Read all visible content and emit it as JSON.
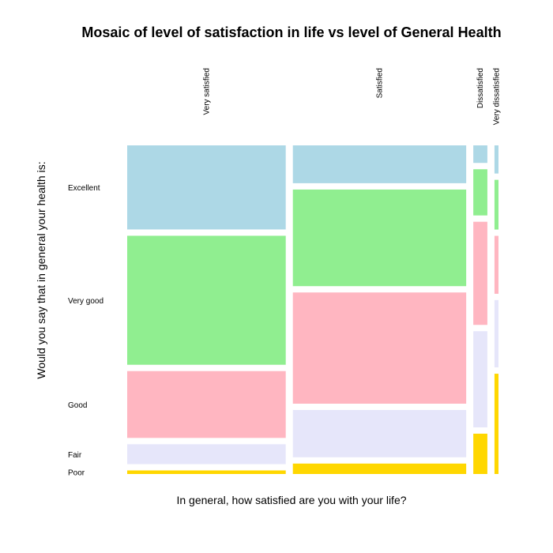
{
  "chart_data": {
    "type": "mosaic",
    "title": "Mosaic of level of satisfaction in life vs level of General Health",
    "xlabel": "In general, how satisfied are you with your life?",
    "ylabel": "Would you say that in general your health is:",
    "x_categories": [
      "Very satisfied",
      "Satisfied",
      "Dissatisfied",
      "Very dissatisfied"
    ],
    "y_categories": [
      "Excellent",
      "Very good",
      "Good",
      "Fair",
      "Poor"
    ],
    "column_share": [
      0.4816,
      0.5265,
      0.0427,
      0.0122
    ],
    "row_share_within_column": [
      [
        0.2569,
        0.3941,
        0.2042,
        0.0607,
        0.0109
      ],
      [
        0.1165,
        0.2974,
        0.3424,
        0.1454,
        0.0321
      ],
      [
        0.0541,
        0.1422,
        0.3175,
        0.296,
        0.1241
      ],
      [
        0.0869,
        0.1534,
        0.1788,
        0.2077,
        0.3095
      ]
    ],
    "colors": [
      "#add8e6",
      "#90ee90",
      "#ffb6c1",
      "#e6e6fa",
      "#ffd700"
    ]
  }
}
